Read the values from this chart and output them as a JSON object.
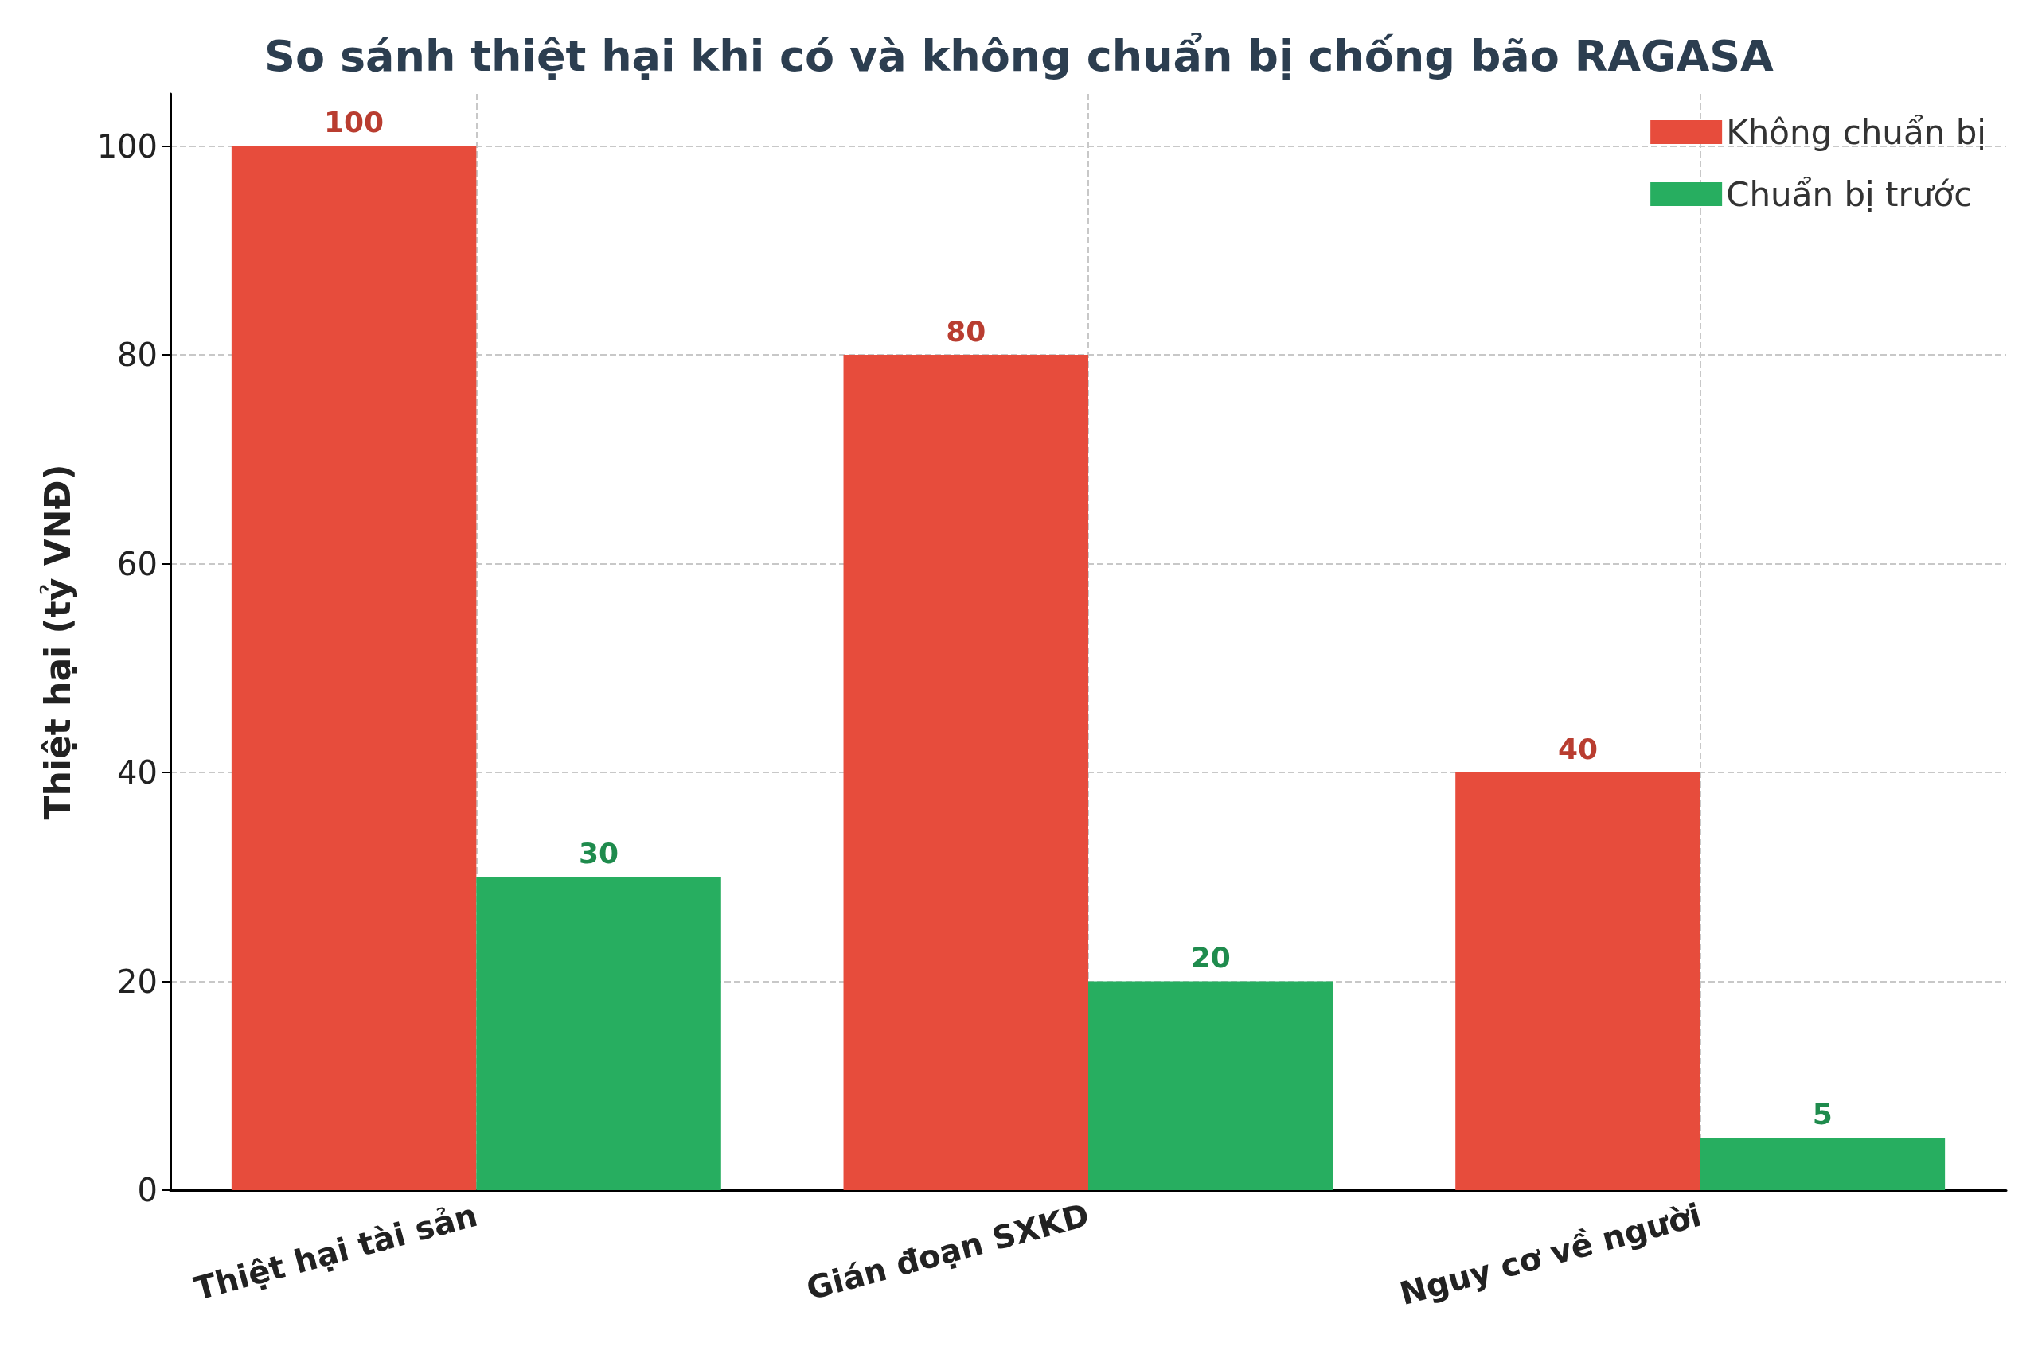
{
  "chart_data": {
    "type": "bar",
    "title": "So sánh thiệt hại khi có và không chuẩn bị chống bão RAGASA",
    "ylabel": "Thiệt hại (tỷ VNĐ)",
    "categories": [
      "Thiệt hại tài sản",
      "Gián đoạn SXKD",
      "Nguy cơ về người"
    ],
    "series": [
      {
        "name": "Không chuẩn bị",
        "color": "#e74c3c",
        "values": [
          100,
          80,
          40
        ]
      },
      {
        "name": "Chuẩn bị trước",
        "color": "#27ae60",
        "values": [
          30,
          20,
          5
        ]
      }
    ],
    "ylim": [
      0,
      105
    ],
    "yticks": [
      0,
      20,
      40,
      60,
      80,
      100
    ],
    "grid": true,
    "legend": "top right",
    "data_labels": true
  }
}
